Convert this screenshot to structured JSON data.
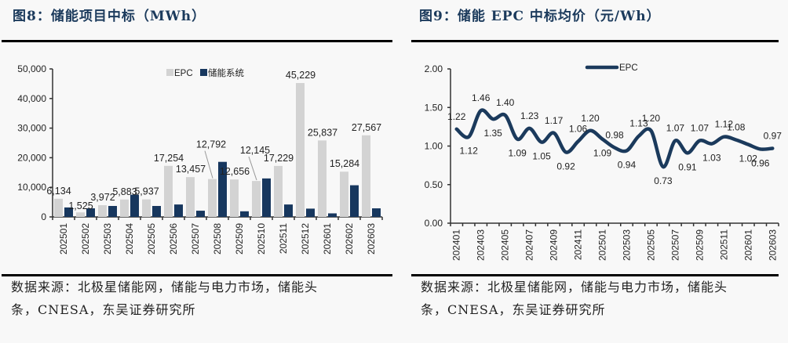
{
  "figures": [
    {
      "title": "图8：储能项目中标（MWh）",
      "source_line1": "数据来源：北极星储能网，储能与电力市场，储能头",
      "source_line2": "条，CNESA，东吴证券研究所"
    },
    {
      "title": "图9：储能 EPC 中标均价（元/Wh）",
      "source_line1": "数据来源：北极星储能网，储能与电力市场，储能头",
      "source_line2": "条，CNESA，东吴证券研究所"
    }
  ],
  "colors": {
    "epc": "#d3d3d3",
    "system": "#17375e",
    "line": "#1b3a5c",
    "title": "#1b3a5c"
  },
  "chart_data": [
    {
      "type": "bar",
      "title": "储能项目中标（MWh）",
      "xlabel": "",
      "ylabel": "",
      "ylim": [
        0,
        50000
      ],
      "yticks": [
        0,
        10000,
        20000,
        30000,
        40000,
        50000
      ],
      "ytick_labels": [
        "0",
        "10,000",
        "20,000",
        "30,000",
        "40,000",
        "50,000"
      ],
      "legend": "top-center",
      "grid": false,
      "categories": [
        "202501",
        "202502",
        "202503",
        "202504",
        "202505",
        "202506",
        "202507",
        "202508",
        "202509",
        "202510",
        "202511",
        "202512",
        "202601",
        "202602",
        "202603"
      ],
      "series": [
        {
          "name": "EPC",
          "values": [
            6134,
            1525,
            3972,
            5883,
            5937,
            17254,
            13457,
            12792,
            12656,
            12145,
            17229,
            45229,
            25837,
            15284,
            27567
          ],
          "labels": [
            "6,134",
            "1,525",
            "3,972",
            "5,883",
            "5,937",
            "17,254",
            "13,457",
            "12,792",
            "12,656",
            "12,145",
            "17,229",
            "45,229",
            "25,837",
            "15,284",
            "27,567"
          ]
        },
        {
          "name": "储能系统",
          "values": [
            3200,
            2900,
            3700,
            7500,
            3700,
            4200,
            2100,
            18600,
            1900,
            13000,
            4200,
            2800,
            1200,
            10700,
            2900
          ]
        }
      ]
    },
    {
      "type": "line",
      "title": "储能 EPC 中标均价（元/Wh）",
      "xlabel": "",
      "ylabel": "",
      "ylim": [
        0,
        2
      ],
      "yticks": [
        0,
        0.5,
        1,
        1.5,
        2
      ],
      "ytick_labels": [
        "0.00",
        "0.50",
        "1.00",
        "1.50",
        "2.00"
      ],
      "legend": "top-center",
      "grid": false,
      "x": [
        "202401",
        "202402",
        "202403",
        "202404",
        "202405",
        "202406",
        "202407",
        "202408",
        "202409",
        "202410",
        "202411",
        "202412",
        "202501",
        "202502",
        "202503",
        "202504",
        "202505",
        "202506",
        "202507",
        "202508",
        "202509",
        "202510",
        "202511",
        "202512",
        "202601",
        "202602",
        "202603"
      ],
      "x_tick_labels": [
        "202401",
        "202403",
        "202405",
        "202407",
        "202409",
        "202411",
        "202501",
        "202503",
        "202505",
        "202507",
        "202509",
        "202511",
        "202601",
        "202603"
      ],
      "series": [
        {
          "name": "EPC",
          "values": [
            1.22,
            1.12,
            1.46,
            1.35,
            1.4,
            1.09,
            1.23,
            1.05,
            1.17,
            0.92,
            1.06,
            1.2,
            1.09,
            0.98,
            0.94,
            1.13,
            1.2,
            0.73,
            1.07,
            0.91,
            1.07,
            1.03,
            1.12,
            1.08,
            1.02,
            0.96,
            0.97
          ],
          "labels": [
            "1.22",
            "1.12",
            "1.46",
            "1.35",
            "1.40",
            "1.09",
            "1.23",
            "1.05",
            "1.17",
            "0.92",
            "1.06",
            "1.20",
            "1.09",
            "0.98",
            "0.94",
            "1.13",
            "1.20",
            "0.73",
            "1.07",
            "0.91",
            "1.07",
            "1.03",
            "1.12",
            "1.08",
            "1.02",
            "0.96",
            "0.97"
          ]
        }
      ]
    }
  ]
}
